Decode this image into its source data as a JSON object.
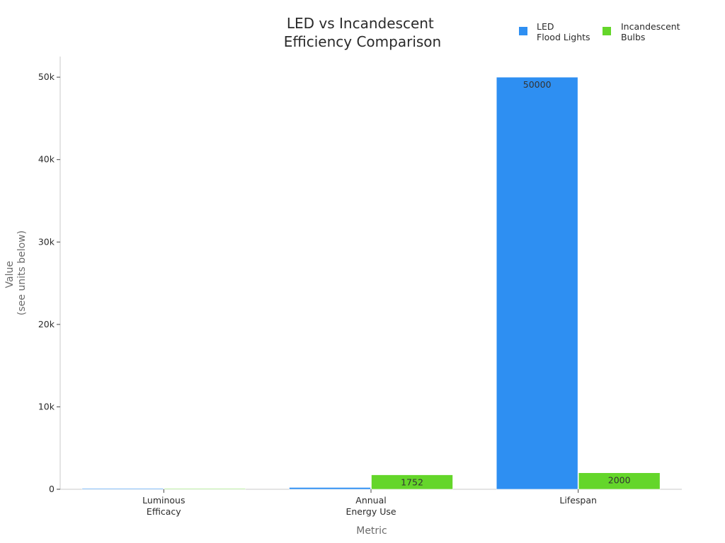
{
  "chart_data": {
    "type": "bar",
    "title": [
      "LED vs Incandescent",
      "Efficiency Comparison"
    ],
    "categories": [
      [
        "Luminous",
        "Efficacy"
      ],
      [
        "Annual",
        "Energy Use"
      ],
      [
        "Lifespan"
      ]
    ],
    "series": [
      {
        "name": [
          "LED",
          "Flood Lights"
        ],
        "color": "#2e8ff2",
        "values": [
          100,
          219,
          50000
        ],
        "labels": [
          "",
          "",
          "50000"
        ]
      },
      {
        "name": [
          "Incandescent",
          "Bulbs"
        ],
        "color": "#64d62a",
        "values": [
          15,
          1752,
          2000
        ],
        "labels": [
          "",
          "1752",
          "2000"
        ]
      }
    ],
    "xlabel": "Metric",
    "ylabel": [
      "Value",
      "(see units below)"
    ],
    "ylim": [
      0,
      52500
    ],
    "yticks": [
      0,
      10000,
      20000,
      30000,
      40000,
      50000
    ],
    "ytick_labels": [
      "0",
      "10k",
      "20k",
      "30k",
      "40k",
      "50k"
    ],
    "legend_position": "top-right",
    "grid": false
  }
}
